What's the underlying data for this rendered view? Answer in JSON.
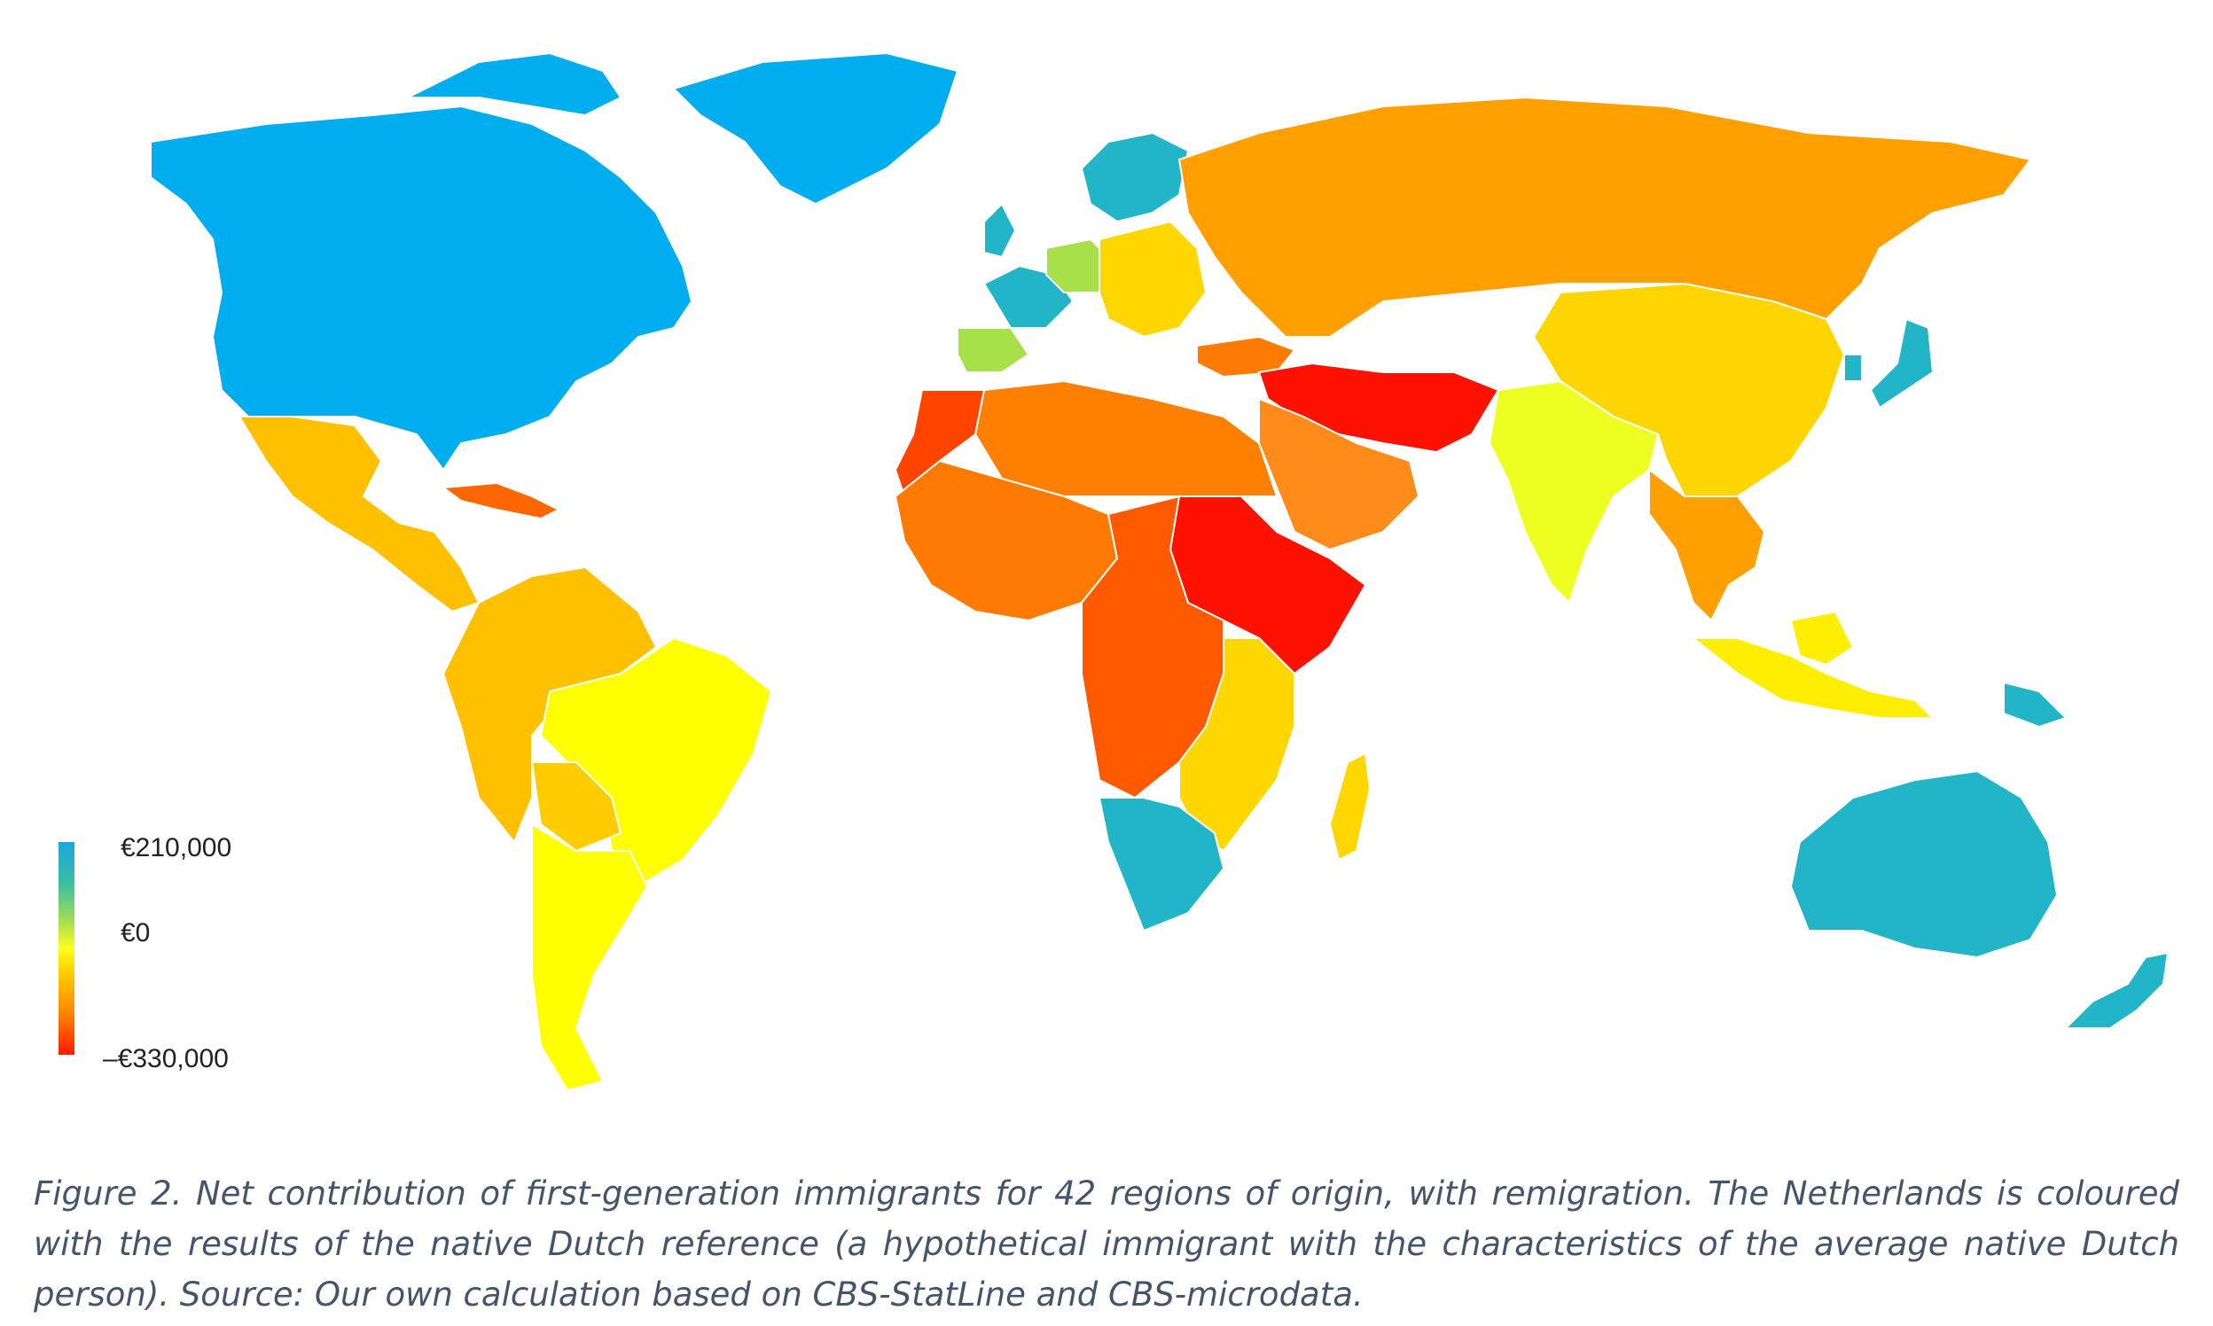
{
  "legend": {
    "max_label": "€210,000",
    "zero_label": "€0",
    "min_label": "–€330,000",
    "colors": {
      "high": "#1aa6e0",
      "zero": "#ffff1a",
      "low": "#ff1a00"
    }
  },
  "caption": "Figure 2. Net contribution of first-generation immigrants for 42 regions of origin, with remigration. The Netherlands is coloured with the results of the native Dutch reference (a hypothetical immigrant with the characteristics of the average native Dutch person). Source: Our own calculation based on CBS-StatLine and CBS-microdata.",
  "map": {
    "regions": [
      {
        "name": "North America",
        "color": "#00aeef"
      },
      {
        "name": "Greenland",
        "color": "#00aeef"
      },
      {
        "name": "Mexico and Central America",
        "color": "#ffc000"
      },
      {
        "name": "Caribbean",
        "color": "#ff6600"
      },
      {
        "name": "Northern South America",
        "color": "#ffc000"
      },
      {
        "name": "Brazil",
        "color": "#ffff00"
      },
      {
        "name": "Southern South America",
        "color": "#ffff00"
      },
      {
        "name": "Bolivia and Paraguay",
        "color": "#ffcc00"
      },
      {
        "name": "Scandinavia",
        "color": "#22b5c8"
      },
      {
        "name": "Western Europe",
        "color": "#22b5c8"
      },
      {
        "name": "Germany and neighbours",
        "color": "#a8e04a"
      },
      {
        "name": "Iberia",
        "color": "#a8e04a"
      },
      {
        "name": "Eastern Europe",
        "color": "#ffd700"
      },
      {
        "name": "Russia and Central Asia",
        "color": "#ffa000"
      },
      {
        "name": "Turkey",
        "color": "#ff7a00"
      },
      {
        "name": "Iran, Iraq, Afghanistan",
        "color": "#ff1100"
      },
      {
        "name": "Arabian Peninsula",
        "color": "#ff8c1a"
      },
      {
        "name": "North Africa",
        "color": "#ff8000"
      },
      {
        "name": "Morocco",
        "color": "#ff4400"
      },
      {
        "name": "West Africa",
        "color": "#ff7a00"
      },
      {
        "name": "Horn of Africa and Sudan",
        "color": "#ff1100"
      },
      {
        "name": "Central Africa",
        "color": "#ff5a00"
      },
      {
        "name": "East and Southeast Africa",
        "color": "#ffd700"
      },
      {
        "name": "Southern Africa",
        "color": "#22b5c8"
      },
      {
        "name": "Madagascar",
        "color": "#ffd700"
      },
      {
        "name": "India",
        "color": "#eeff22"
      },
      {
        "name": "China and East Asia",
        "color": "#ffd500"
      },
      {
        "name": "Japan and Korea",
        "color": "#22b5c8"
      },
      {
        "name": "Southeast Asia",
        "color": "#ffa000"
      },
      {
        "name": "Indonesia",
        "color": "#ffee00"
      },
      {
        "name": "Papua New Guinea",
        "color": "#22b5c8"
      },
      {
        "name": "Australia",
        "color": "#22b5c8"
      },
      {
        "name": "New Zealand",
        "color": "#22b5c8"
      }
    ]
  }
}
